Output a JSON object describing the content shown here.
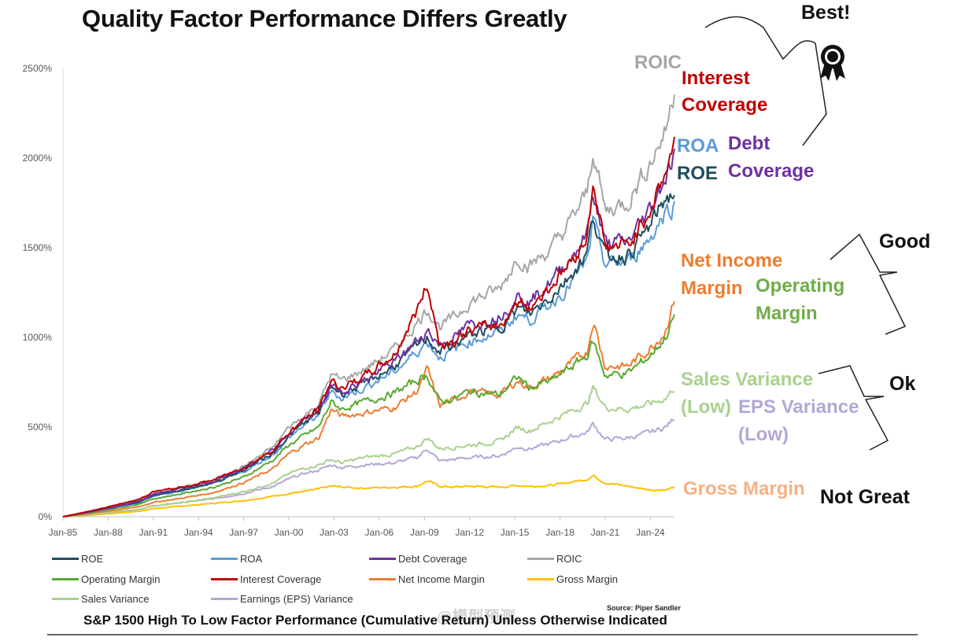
{
  "title": "Quality Factor Performance Differs Greatly",
  "footnote": "S&P 1500 High To Low Factor Performance (Cumulative Return) Unless Otherwise Indicated",
  "source": "Source: Piper Sandler",
  "watermark": "@模型预测",
  "categories": {
    "best": "Best!",
    "good": "Good",
    "ok": "Ok",
    "not_great": "Not Great"
  },
  "labels": {
    "roic": "ROIC",
    "interest_coverage": [
      "Interest",
      "Coverage"
    ],
    "roa": "ROA",
    "roe": "ROE",
    "debt_coverage": [
      "Debt",
      "Coverage"
    ],
    "net_income_margin": [
      "Net Income",
      "Margin"
    ],
    "operating_margin": [
      "Operating",
      "Margin"
    ],
    "sales_variance": [
      "Sales Variance",
      "(Low)"
    ],
    "eps_variance": [
      "EPS Variance",
      "(Low)"
    ],
    "gross_margin": "Gross Margin"
  },
  "icon": "award-ribbon-icon",
  "chart_data": {
    "type": "line",
    "title": "Quality Factor Performance Differs Greatly",
    "xlabel": "",
    "ylabel": "",
    "ylim": [
      0,
      2500
    ],
    "y_ticks": [
      0,
      500,
      1000,
      1500,
      2000,
      2500
    ],
    "y_tick_labels": [
      "0%",
      "500%",
      "1000%",
      "1500%",
      "2000%",
      "2500%"
    ],
    "x_ticks": [
      "Jan-85",
      "Jan-88",
      "Jan-91",
      "Jan-94",
      "Jan-97",
      "Jan-00",
      "Jan-03",
      "Jan-06",
      "Jan-09",
      "Jan-12",
      "Jan-15",
      "Jan-18",
      "Jan-21",
      "Jan-24"
    ],
    "x_range": [
      1985,
      2025.6
    ],
    "anchor_years": [
      1985,
      1987,
      1990,
      1991,
      1993,
      1995,
      1997,
      1999,
      2000,
      2001,
      2002,
      2002.8,
      2003.5,
      2005,
      2007,
      2008.5,
      2009.2,
      2010,
      2011,
      2012,
      2014,
      2015.2,
      2016,
      2017.5,
      2018.5,
      2019.8,
      2020.2,
      2021,
      2022.5,
      2024,
      2025,
      2025.6
    ],
    "series": [
      {
        "name": "ROE",
        "color": "#1f4e5f",
        "values": [
          0,
          30,
          80,
          120,
          150,
          190,
          260,
          360,
          450,
          520,
          580,
          730,
          690,
          740,
          840,
          950,
          1000,
          920,
          960,
          1010,
          1060,
          1160,
          1130,
          1240,
          1330,
          1470,
          1680,
          1450,
          1460,
          1620,
          1780,
          1800
        ]
      },
      {
        "name": "ROA",
        "color": "#5b9bd5",
        "values": [
          0,
          30,
          75,
          115,
          145,
          185,
          250,
          350,
          440,
          510,
          570,
          700,
          660,
          720,
          810,
          920,
          980,
          890,
          930,
          980,
          1030,
          1130,
          1100,
          1200,
          1280,
          1420,
          1640,
          1410,
          1420,
          1560,
          1700,
          1740
        ]
      },
      {
        "name": "Debt Coverage",
        "color": "#7030a0",
        "values": [
          0,
          30,
          85,
          125,
          160,
          195,
          270,
          370,
          460,
          540,
          600,
          730,
          700,
          760,
          860,
          980,
          1040,
          960,
          1000,
          1070,
          1120,
          1230,
          1200,
          1320,
          1420,
          1580,
          1820,
          1520,
          1530,
          1720,
          1900,
          2020
        ]
      },
      {
        "name": "ROIC",
        "color": "#a6a6a6",
        "values": [
          0,
          35,
          90,
          130,
          165,
          205,
          280,
          390,
          500,
          560,
          630,
          790,
          760,
          820,
          930,
          1080,
          1160,
          1060,
          1110,
          1200,
          1270,
          1450,
          1400,
          1500,
          1620,
          1800,
          2050,
          1700,
          1760,
          1980,
          2150,
          2380
        ]
      },
      {
        "name": "Operating Margin",
        "color": "#5aa832",
        "values": [
          0,
          25,
          70,
          100,
          130,
          165,
          220,
          320,
          400,
          450,
          500,
          640,
          600,
          640,
          690,
          760,
          790,
          640,
          660,
          700,
          680,
          780,
          720,
          760,
          820,
          900,
          980,
          790,
          800,
          900,
          1000,
          1120
        ]
      },
      {
        "name": "Interest Coverage",
        "color": "#c00000",
        "values": [
          0,
          35,
          95,
          140,
          165,
          205,
          275,
          375,
          470,
          540,
          600,
          760,
          720,
          780,
          900,
          1150,
          1300,
          960,
          980,
          1040,
          1070,
          1200,
          1170,
          1300,
          1400,
          1560,
          1870,
          1500,
          1510,
          1720,
          1920,
          2080
        ]
      },
      {
        "name": "Net Income Margin",
        "color": "#ed7d31",
        "values": [
          0,
          20,
          55,
          80,
          105,
          135,
          190,
          270,
          350,
          400,
          440,
          600,
          560,
          580,
          610,
          700,
          820,
          620,
          650,
          700,
          680,
          760,
          720,
          780,
          840,
          920,
          1100,
          840,
          840,
          940,
          1040,
          1220
        ]
      },
      {
        "name": "Gross Margin",
        "color": "#ffc000",
        "values": [
          0,
          10,
          30,
          45,
          60,
          75,
          90,
          115,
          130,
          140,
          155,
          170,
          165,
          160,
          165,
          170,
          200,
          170,
          165,
          170,
          165,
          175,
          170,
          175,
          190,
          210,
          230,
          190,
          170,
          150,
          150,
          165
        ]
      },
      {
        "name": "Sales Variance",
        "color": "#a9d18e",
        "values": [
          0,
          15,
          40,
          60,
          80,
          105,
          140,
          190,
          240,
          270,
          290,
          320,
          300,
          330,
          350,
          390,
          440,
          380,
          390,
          400,
          420,
          500,
          480,
          540,
          580,
          630,
          720,
          610,
          600,
          630,
          660,
          720
        ]
      },
      {
        "name": "Earnings (EPS) Variance",
        "color": "#b4a7d6",
        "values": [
          0,
          15,
          40,
          60,
          80,
          100,
          130,
          170,
          210,
          240,
          260,
          290,
          275,
          290,
          300,
          330,
          380,
          310,
          320,
          330,
          340,
          390,
          380,
          410,
          440,
          470,
          520,
          430,
          440,
          470,
          500,
          550
        ]
      }
    ],
    "legend": [
      [
        "ROE",
        "ROA",
        "Debt Coverage",
        "ROIC"
      ],
      [
        "Operating Margin",
        "Interest Coverage",
        "Net Income Margin",
        "Gross Margin"
      ],
      [
        "Sales Variance",
        "Earnings (EPS) Variance"
      ]
    ],
    "legend_position": "bottom",
    "grid": false
  }
}
